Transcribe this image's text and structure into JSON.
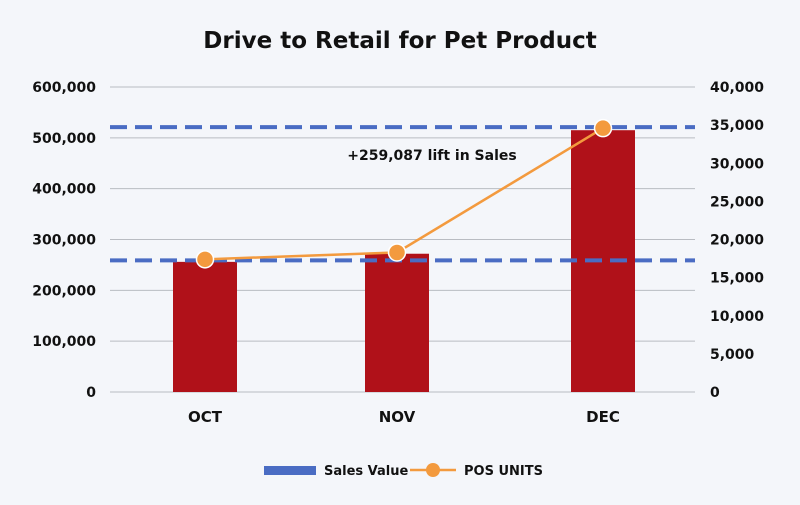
{
  "chart_data": {
    "type": "bar",
    "title": "Drive to Retail for Pet Product",
    "categories": [
      "OCT",
      "NOV",
      "DEC"
    ],
    "series": [
      {
        "name": "Sales Value",
        "type": "bar",
        "axis": "left",
        "values": [
          256000,
          272000,
          515000
        ]
      },
      {
        "name": "POS UNITS",
        "type": "line",
        "axis": "right",
        "values": [
          17400,
          18300,
          34600
        ]
      }
    ],
    "reference_lines": [
      {
        "axis": "left",
        "value": 259000,
        "style": "dashed"
      },
      {
        "axis": "left",
        "value": 521000,
        "style": "dashed"
      }
    ],
    "annotation": "+259,087 lift in Sales",
    "yleft": {
      "ylim": [
        0,
        600000
      ],
      "ticks": [
        "0",
        "100,000",
        "200,000",
        "300,000",
        "400,000",
        "500,000",
        "600,000"
      ]
    },
    "yright": {
      "ylim": [
        0,
        40000
      ],
      "ticks": [
        "0",
        "5,000",
        "10,000",
        "15,000",
        "20,000",
        "25,000",
        "30,000",
        "35,000",
        "40,000"
      ]
    },
    "grid": true,
    "legend_position": "bottom",
    "colors": {
      "bar": "#b01119",
      "line": "#f39a3e",
      "reference": "#4a6cc3",
      "grid": "#b9bcc2"
    }
  }
}
